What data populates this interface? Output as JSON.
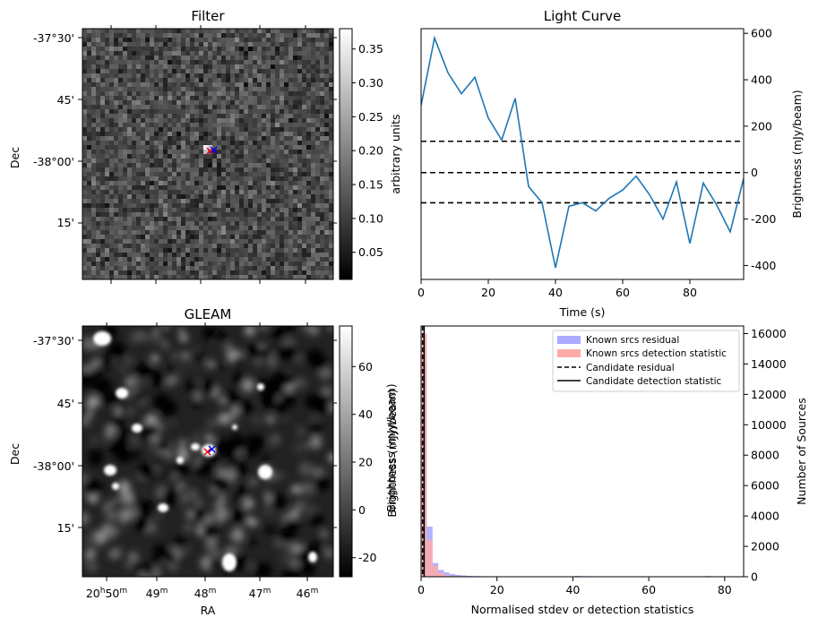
{
  "panels": {
    "filter": {
      "title": "Filter",
      "ylabel": "Dec",
      "dec_ticks": [
        "-37°30'",
        "45'",
        "-38°00'",
        "15'"
      ],
      "colorbar": {
        "label": "arbitrary units",
        "ticks": [
          "0.35",
          "0.30",
          "0.25",
          "0.20",
          "0.15",
          "0.10",
          "0.05"
        ],
        "range": [
          0.01,
          0.38
        ],
        "cmap": "gray"
      }
    },
    "gleam": {
      "title": "GLEAM",
      "ylabel": "Dec",
      "xlabel": "RA",
      "dec_ticks": [
        "-37°30'",
        "45'",
        "-38°00'",
        "15'"
      ],
      "ra_ticks": [
        {
          "main": "20",
          "sup1": "h",
          "mid": "50",
          "sup2": "m"
        },
        {
          "main": "49",
          "sup1": "",
          "mid": "",
          "sup2": "m"
        },
        {
          "main": "48",
          "sup1": "",
          "mid": "",
          "sup2": "m"
        },
        {
          "main": "47",
          "sup1": "",
          "mid": "",
          "sup2": "m"
        },
        {
          "main": "46",
          "sup1": "",
          "mid": "",
          "sup2": "m"
        }
      ],
      "colorbar": {
        "label": "Brightness (mJy/beam)",
        "ticks": [
          "60",
          "40",
          "20",
          "0",
          "-20"
        ],
        "range": [
          -28,
          77
        ],
        "cmap": "gray"
      }
    }
  },
  "markers": {
    "red": "#ff0000",
    "blue": "#0000ff"
  },
  "colors": {
    "line": "#1f77b4",
    "hist_blue": "#aaaaff",
    "hist_red": "#ffaaaa"
  },
  "chart_data": [
    {
      "type": "line",
      "title": "Light Curve",
      "xlabel": "Time (s)",
      "ylabel": "Brightness (mJy/beam)",
      "xlim": [
        0,
        96
      ],
      "ylim": [
        -460,
        620
      ],
      "x_ticks": [
        0,
        20,
        40,
        60,
        80
      ],
      "y_ticks": [
        600,
        400,
        200,
        0,
        -200,
        -400
      ],
      "series": [
        {
          "x": [
            0,
            4,
            8,
            12,
            16,
            20,
            24,
            28,
            32,
            36,
            40,
            44,
            48,
            52,
            56,
            60,
            64,
            68,
            72,
            76,
            80,
            84,
            88,
            92,
            96
          ],
          "y": [
            290,
            580,
            430,
            340,
            410,
            235,
            140,
            320,
            -60,
            -130,
            -410,
            -145,
            -130,
            -165,
            -110,
            -75,
            -15,
            -95,
            -200,
            -40,
            -305,
            -45,
            -140,
            -255,
            -25
          ]
        }
      ],
      "hlines": [
        135,
        0,
        -130
      ]
    },
    {
      "type": "bar",
      "xlabel": "Normalised stdev or detection statistics",
      "ylabel": "Number of Sources",
      "left_ylabel": "Brightness (mJy/beam)",
      "xlim": [
        0,
        85
      ],
      "ylim": [
        0,
        16500
      ],
      "x_ticks": [
        0,
        20,
        40,
        60,
        80
      ],
      "y_ticks": [
        0,
        2000,
        4000,
        6000,
        8000,
        10000,
        12000,
        14000,
        16000
      ],
      "bin_width": 1.5,
      "series": [
        {
          "name": "Known srcs residual",
          "bins": [
            0,
            1.5,
            3,
            4.5,
            6,
            7.5,
            9,
            10.5,
            12,
            13.5,
            15,
            16.5,
            40.5,
            42,
            48,
            54,
            60,
            66,
            72,
            75,
            78
          ],
          "values": [
            14000,
            3300,
            900,
            450,
            280,
            180,
            120,
            90,
            60,
            45,
            35,
            25,
            60,
            40,
            30,
            25,
            20,
            30,
            20,
            50,
            30
          ]
        },
        {
          "name": "Known srcs detection statistic",
          "bins": [
            0,
            1.5,
            3,
            4.5,
            6,
            7.5,
            9
          ],
          "values": [
            16000,
            2400,
            700,
            260,
            120,
            60,
            30
          ]
        }
      ],
      "candidate_residual": 0.4,
      "candidate_detection_statistic": 0.8,
      "legend": [
        "Known srcs residual",
        "Known srcs detection statistic",
        "Candidate residual",
        "Candidate detection statistic"
      ],
      "legend_placement": "top-right"
    }
  ]
}
